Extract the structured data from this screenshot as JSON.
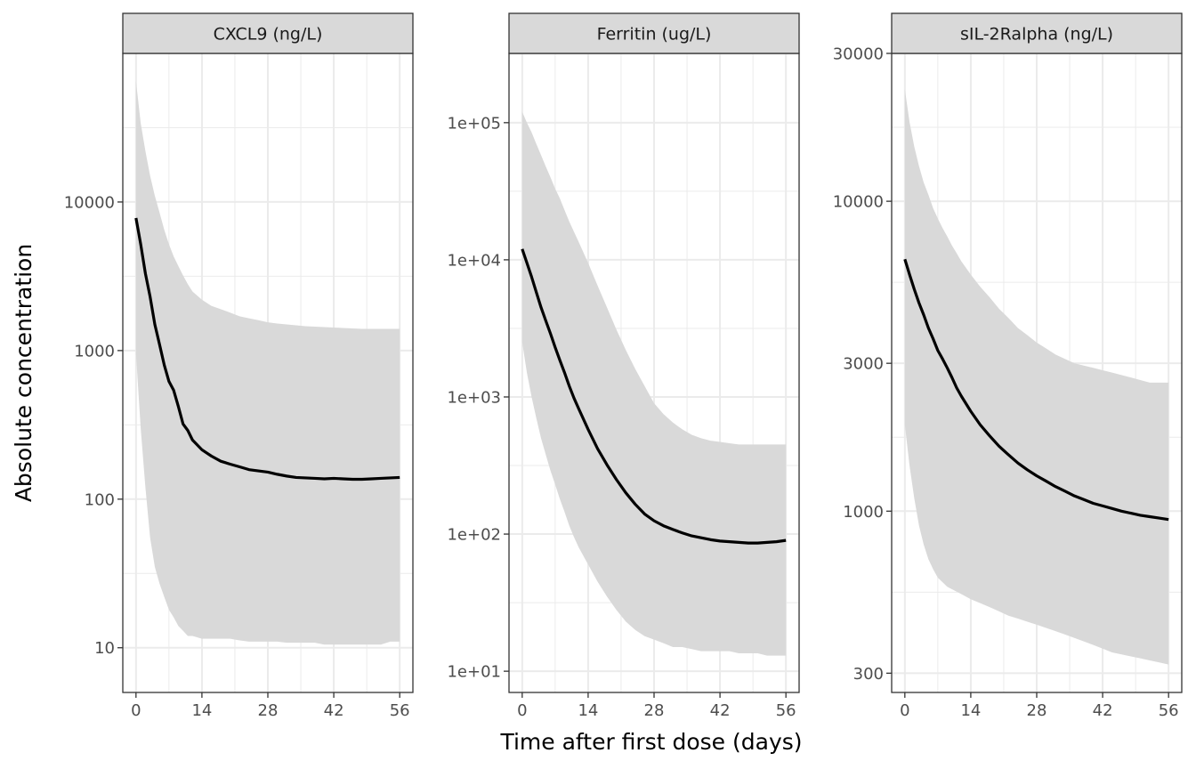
{
  "chart_data": {
    "type": "line",
    "layout": "faceted-line-with-ribbon",
    "xlabel": "Time after first dose (days)",
    "ylabel": "Absolute concentration",
    "x_ticks": [
      0,
      14,
      28,
      42,
      56
    ],
    "xlim": [
      -2.8,
      58.8
    ],
    "y_scale": "log10",
    "grid": true,
    "legend": "none",
    "colors": {
      "line": "#000000",
      "ribbon": "#d9d9d9",
      "strip_fill": "#d9d9d9",
      "panel_border": "#333333",
      "grid": "#ebebeb"
    },
    "panels": [
      {
        "title": "CXCL9 (ng/L)",
        "ylim": [
          5,
          100000
        ],
        "y_ticks": [
          10,
          100,
          1000,
          10000
        ],
        "y_tick_labels": [
          "10",
          "100",
          "1000",
          "10000"
        ],
        "series": [
          {
            "x": [
              0,
              1,
              2,
              3,
              4,
              5,
              6,
              7,
              8,
              9,
              10,
              11,
              12,
              14,
              16,
              18,
              20,
              22,
              24,
              26,
              28,
              30,
              32,
              34,
              36,
              38,
              40,
              42,
              44,
              46,
              48,
              50,
              52,
              54,
              56
            ],
            "y": [
              7800,
              5200,
              3300,
              2300,
              1500,
              1100,
              800,
              620,
              540,
              420,
              320,
              290,
              250,
              215,
              195,
              180,
              172,
              165,
              158,
              155,
              152,
              147,
              143,
              140,
              139,
              138,
              137,
              138,
              137,
              136,
              136,
              137,
              138,
              139,
              140
            ],
            "lower": [
              950,
              300,
              120,
              55,
              35,
              27,
              22,
              18,
              16,
              14,
              13,
              12,
              12,
              11.5,
              11.5,
              11.5,
              11.5,
              11.2,
              11,
              11,
              11,
              11,
              10.8,
              10.8,
              10.8,
              10.8,
              10.5,
              10.5,
              10.5,
              10.5,
              10.5,
              10.5,
              10.5,
              11,
              11
            ],
            "upper": [
              65000,
              34000,
              22000,
              15000,
              11000,
              8500,
              6500,
              5200,
              4300,
              3700,
              3200,
              2800,
              2500,
              2200,
              2000,
              1900,
              1800,
              1700,
              1650,
              1600,
              1550,
              1520,
              1500,
              1480,
              1460,
              1450,
              1440,
              1430,
              1420,
              1410,
              1400,
              1400,
              1400,
              1400,
              1400
            ]
          }
        ]
      },
      {
        "title": "Ferritin (ug/L)",
        "ylim": [
          7,
          320000
        ],
        "y_ticks": [
          10,
          100,
          1000,
          10000,
          100000
        ],
        "y_tick_labels": [
          "1e+01",
          "1e+02",
          "1e+03",
          "1e+04",
          "1e+05"
        ],
        "series": [
          {
            "x": [
              0,
              1,
              2,
              3,
              4,
              5,
              6,
              7,
              8,
              9,
              10,
              11,
              12,
              14,
              16,
              18,
              20,
              22,
              24,
              26,
              28,
              30,
              32,
              34,
              36,
              38,
              40,
              42,
              44,
              46,
              48,
              50,
              52,
              54,
              56
            ],
            "y": [
              12000,
              9500,
              7500,
              5800,
              4500,
              3600,
              2900,
              2300,
              1850,
              1500,
              1200,
              980,
              820,
              580,
              420,
              320,
              250,
              200,
              165,
              140,
              125,
              115,
              108,
              102,
              97,
              94,
              91,
              89,
              88,
              87,
              86,
              86,
              87,
              88,
              90
            ],
            "lower": [
              2500,
              1500,
              1000,
              700,
              500,
              380,
              290,
              230,
              180,
              145,
              115,
              95,
              80,
              60,
              45,
              35,
              28,
              23,
              20,
              18,
              17,
              16,
              15,
              15,
              14.5,
              14,
              14,
              14,
              14,
              13.5,
              13.5,
              13.5,
              13,
              13,
              13
            ],
            "upper": [
              120000,
              100000,
              85000,
              70000,
              58000,
              48000,
              40000,
              33000,
              28000,
              23000,
              19000,
              16000,
              13500,
              9500,
              6500,
              4500,
              3100,
              2200,
              1600,
              1200,
              900,
              750,
              650,
              580,
              530,
              500,
              480,
              470,
              460,
              450,
              450,
              450,
              450,
              450,
              450
            ]
          }
        ]
      },
      {
        "title": "sIL-2Ralpha (ng/L)",
        "ylim": [
          260,
          30000
        ],
        "y_ticks": [
          300,
          1000,
          3000,
          10000,
          30000
        ],
        "y_tick_labels": [
          "300",
          "1000",
          "3000",
          "10000",
          "30000"
        ],
        "series": [
          {
            "x": [
              0,
              1,
              2,
              3,
              4,
              5,
              6,
              7,
              8,
              9,
              10,
              11,
              12,
              14,
              16,
              18,
              20,
              22,
              24,
              26,
              28,
              30,
              32,
              34,
              36,
              38,
              40,
              42,
              44,
              46,
              48,
              50,
              52,
              54,
              56
            ],
            "y": [
              6500,
              5800,
              5200,
              4700,
              4300,
              3900,
              3600,
              3300,
              3100,
              2900,
              2700,
              2500,
              2350,
              2100,
              1900,
              1750,
              1620,
              1520,
              1430,
              1360,
              1300,
              1250,
              1200,
              1160,
              1120,
              1090,
              1060,
              1040,
              1020,
              1000,
              985,
              970,
              960,
              950,
              940
            ],
            "lower": [
              1900,
              1400,
              1100,
              900,
              780,
              700,
              650,
              610,
              590,
              570,
              560,
              550,
              540,
              520,
              505,
              490,
              475,
              460,
              450,
              440,
              430,
              420,
              410,
              400,
              390,
              380,
              370,
              360,
              350,
              345,
              340,
              335,
              330,
              325,
              320
            ],
            "upper": [
              23000,
              18000,
              15000,
              13000,
              11500,
              10500,
              9500,
              8800,
              8200,
              7700,
              7200,
              6800,
              6400,
              5800,
              5300,
              4900,
              4500,
              4200,
              3900,
              3700,
              3500,
              3350,
              3200,
              3100,
              3000,
              2950,
              2900,
              2850,
              2800,
              2750,
              2700,
              2650,
              2600,
              2600,
              2600
            ]
          }
        ]
      }
    ]
  }
}
